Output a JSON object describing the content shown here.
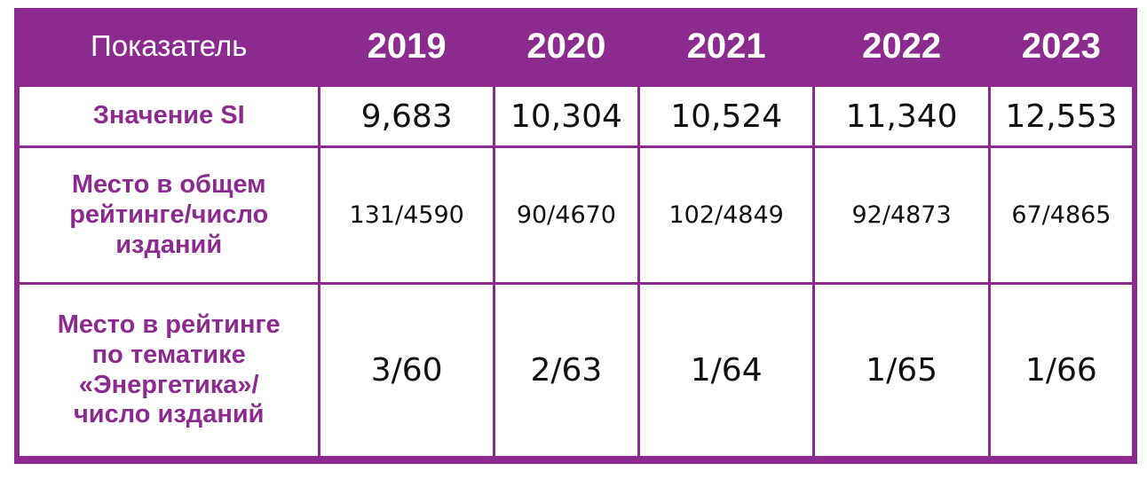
{
  "table": {
    "header": {
      "label": "Показатель",
      "years": [
        "2019",
        "2020",
        "2021",
        "2022",
        "2023"
      ]
    },
    "rows": [
      {
        "label_lines": [
          "Значение SI"
        ],
        "values": [
          "9,683",
          "10,304",
          "10,524",
          "11,340",
          "12,553"
        ]
      },
      {
        "label_lines": [
          "Место в общем",
          "рейтинге/число",
          "изданий"
        ],
        "values": [
          "131/4590",
          "90/4670",
          "102/4849",
          "92/4873",
          "67/4865"
        ]
      },
      {
        "label_lines": [
          "Место в рейтинге",
          "по тематике",
          "«Энергетика»/",
          "число изданий"
        ],
        "values": [
          "3/60",
          "2/63",
          "1/64",
          "1/65",
          "1/66"
        ]
      }
    ]
  },
  "colors": {
    "accent": "#8c2a8f",
    "header_text": "#ffffff",
    "cell_text": "#111111",
    "background": "#ffffff"
  }
}
